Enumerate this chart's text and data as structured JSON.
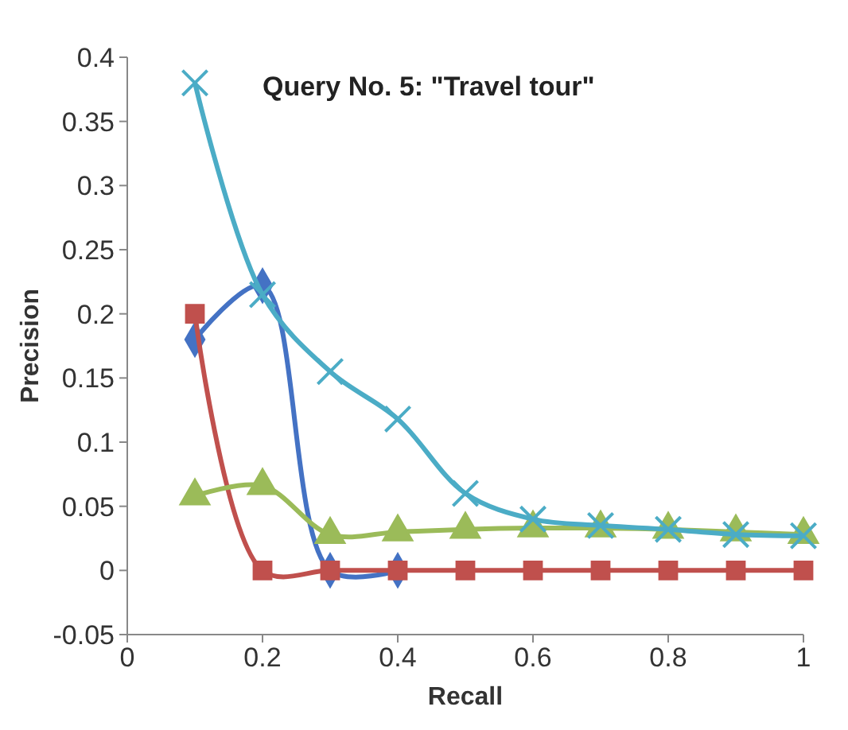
{
  "chart_data": {
    "type": "line",
    "xlabel": "Recall",
    "ylabel": "Precision",
    "annotations": [
      "Query No. 5: \"Travel tour\""
    ],
    "x": [
      0.1,
      0.2,
      0.3,
      0.4,
      0.5,
      0.6,
      0.7,
      0.8,
      0.9,
      1
    ],
    "xlim": [
      0,
      1
    ],
    "xticks": [
      0,
      0.2,
      0.4,
      0.6,
      0.8,
      1
    ],
    "ylim": [
      -0.05,
      0.4
    ],
    "yticks": [
      -0.05,
      0,
      0.05,
      0.1,
      0.15,
      0.2,
      0.25,
      0.3,
      0.35,
      0.4
    ],
    "grid": false,
    "series": [
      {
        "color": "#4472c4",
        "marker": "diamond",
        "values": [
          0.18,
          0.222,
          0,
          0,
          null,
          null,
          null,
          null,
          null,
          null
        ]
      },
      {
        "color": "#c0504d",
        "marker": "square",
        "values": [
          0.2,
          0,
          0,
          0,
          0,
          0,
          0,
          0,
          0,
          0
        ]
      },
      {
        "color": "#9bbb59",
        "marker": "triangle",
        "values": [
          0.058,
          0.066,
          0.028,
          0.03,
          0.032,
          0.033,
          0.033,
          0.032,
          0.03,
          0.028
        ]
      },
      {
        "color": "#4bacc6",
        "marker": "cross",
        "values": [
          0.38,
          0.215,
          0.155,
          0.118,
          0.06,
          0.04,
          0.035,
          0.032,
          0.028,
          0.027
        ]
      }
    ]
  }
}
